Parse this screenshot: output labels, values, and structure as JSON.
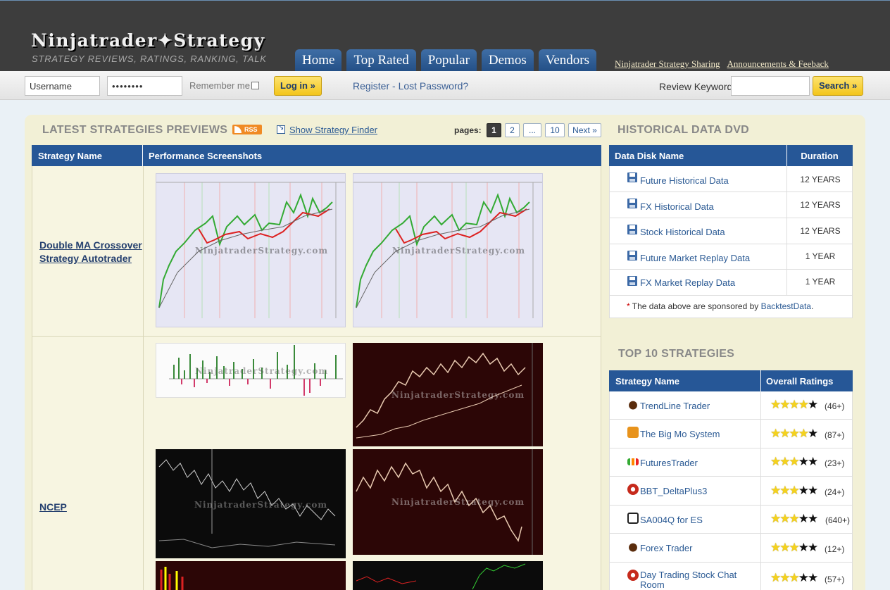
{
  "header": {
    "logo_part1": "Ninjatrader",
    "logo_part2": "Strategy",
    "tagline": "STRATEGY REVIEWS, RATINGS, RANKING, TALK",
    "nav": [
      "Home",
      "Top Rated",
      "Popular",
      "Demos",
      "Vendors"
    ],
    "toplinks": [
      "Ninjatrader Strategy Sharing",
      "Announcements & Feeback"
    ]
  },
  "login": {
    "username_value": "Username",
    "password_value": "••••••••",
    "remember_label": "Remember me",
    "login_button": "Log in »",
    "register_link": "Register - Lost Password?",
    "review_label": "Review Keyword:",
    "search_button": "Search »"
  },
  "latest": {
    "title": "LATEST STRATEGIES PREVIEWS",
    "rss_label": "RSS",
    "finder_link": "Show Strategy Finder",
    "pages_label": "pages:",
    "pages": [
      "1",
      "2",
      "...",
      "10",
      "Next »"
    ],
    "col_name": "Strategy Name",
    "col_shots": "Performance Screenshots",
    "strategies": [
      {
        "name": "Double MA Crossover Strategy Autotrader"
      },
      {
        "name": "NCEP"
      }
    ],
    "watermark": "NinjatraderStrategy.com"
  },
  "historical": {
    "title": "HISTORICAL DATA DVD",
    "col_name": "Data Disk Name",
    "col_duration": "Duration",
    "rows": [
      {
        "name": "Future Historical Data",
        "duration": "12 YEARS"
      },
      {
        "name": "FX Historical Data",
        "duration": "12 YEARS"
      },
      {
        "name": "Stock Historical Data",
        "duration": "12 YEARS"
      },
      {
        "name": "Future Market Replay Data",
        "duration": "1 YEAR"
      },
      {
        "name": "FX Market Replay Data",
        "duration": "1 YEAR"
      }
    ],
    "note_star": "*",
    "note_text": " The data above are sponsored by ",
    "note_link": "BacktestData",
    "note_end": "."
  },
  "top10": {
    "title": "TOP 10 STRATEGIES",
    "col_name": "Strategy Name",
    "col_rating": "Overall Ratings",
    "rows": [
      {
        "name": "TrendLine Trader",
        "rating": 4,
        "count": "(46+)",
        "icon": "bull-icon",
        "color": "#5a2c0c"
      },
      {
        "name": "The Big Mo System",
        "rating": 4,
        "count": "(87+)",
        "icon": "t2t-icon",
        "color": "#e8931c"
      },
      {
        "name": "FuturesTrader",
        "rating": 3,
        "count": "(23+)",
        "icon": "bars-icon",
        "color": "#f3f3f3"
      },
      {
        "name": "BBT_DeltaPlus3",
        "rating": 3,
        "count": "(24+)",
        "icon": "swirl-icon",
        "color": "#c62a1c"
      },
      {
        "name": "SA004Q for ES",
        "rating": 3,
        "count": "(640+)",
        "icon": "pt-icon",
        "color": "#ffffff"
      },
      {
        "name": "Forex Trader",
        "rating": 3,
        "count": "(12+)",
        "icon": "bull-icon",
        "color": "#5a2c0c"
      },
      {
        "name": "Day Trading Stock Chat Room",
        "rating": 3,
        "count": "(57+)",
        "icon": "swirl-icon",
        "color": "#c62a1c"
      }
    ]
  }
}
